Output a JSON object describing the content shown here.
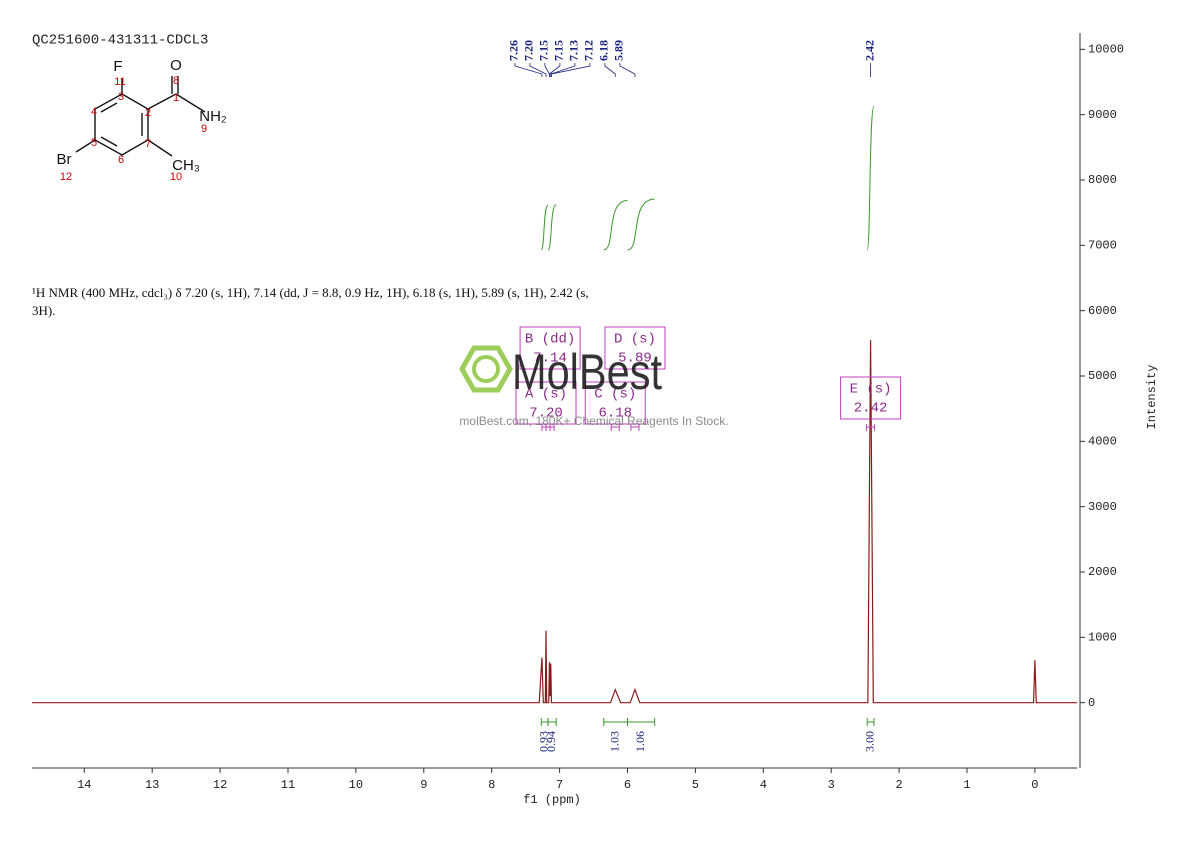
{
  "chart_data": {
    "type": "nmr",
    "title": "QC251600-431311-CDCL3",
    "description": "¹H NMR (400 MHz, cdcl₃) δ 7.20 (s, 1H), 7.14 (dd, J = 8.8, 0.9 Hz, 1H), 6.18 (s, 1H), 5.89 (s, 1H), 2.42 (s, 3H).",
    "x_label": "f1 (ppm)",
    "y_label": "Intensity",
    "color": "#8b1a1a",
    "xlim": [
      14.77,
      -0.62
    ],
    "xticks": [
      14,
      13,
      12,
      11,
      10,
      9,
      8,
      7,
      6,
      5,
      4,
      3,
      2,
      1,
      0
    ],
    "ylim": [
      -1000,
      10250
    ],
    "yticks": [
      0,
      1000,
      2000,
      3000,
      4000,
      5000,
      6000,
      7000,
      8000,
      9000,
      10000
    ],
    "x": [
      14.77,
      7.3,
      7.26,
      7.24,
      7.21,
      7.2,
      7.19,
      7.16,
      7.15,
      7.14,
      7.13,
      7.12,
      6.25,
      6.18,
      6.1,
      5.96,
      5.89,
      5.82,
      2.46,
      2.42,
      2.38,
      0.02,
      0,
      -0.02,
      -0.62
    ],
    "values": [
      0,
      0,
      690,
      0,
      0,
      1100,
      0,
      0,
      620,
      100,
      600,
      0,
      0,
      200,
      0,
      0,
      200,
      0,
      0,
      5550,
      0,
      0,
      650,
      0,
      -0.0
    ],
    "peaks": {
      "values": [
        7.26,
        7.2,
        7.15,
        7.15,
        7.13,
        7.12,
        6.18,
        5.89,
        2.42
      ],
      "value_labels": [
        "7.26",
        "7.20",
        "7.15",
        "7.15",
        "7.13",
        "7.12",
        "6.18",
        "5.89",
        "2.42"
      ]
    },
    "integrals": {
      "values": [
        0.93,
        0.94,
        1.03,
        1.06,
        3
      ],
      "value_labels": [
        "0.93",
        "0.94",
        "1.03",
        "1.06",
        "3.00"
      ],
      "ranges": [
        [
          7.27,
          7.17
        ],
        [
          7.17,
          7.05
        ],
        [
          6.35,
          6.0
        ],
        [
          6.0,
          5.6
        ],
        [
          2.47,
          2.37
        ]
      ]
    },
    "multiplets": [
      {
        "name": "A (s)",
        "value": 7.2,
        "label": "7.20"
      },
      {
        "name": "B (dd)",
        "value": 7.14,
        "label": "7.14"
      },
      {
        "name": "C (s)",
        "value": 6.18,
        "label": "6.18"
      },
      {
        "name": "D (s)",
        "value": 5.89,
        "label": "5.89"
      },
      {
        "name": "E (s)",
        "value": 2.42,
        "label": "2.42"
      }
    ],
    "structure": {
      "atoms": [
        "F",
        "O",
        "NH₂",
        "Br",
        "CH₃"
      ],
      "numbers": [
        "11",
        "8",
        "3",
        "1",
        "2",
        "9",
        "4",
        "7",
        "5",
        "6",
        "10",
        "12"
      ]
    },
    "watermark": {
      "brand": "MolBest",
      "tagline": "molBest.com, 180K+ Chemical Reagents In Stock."
    }
  }
}
